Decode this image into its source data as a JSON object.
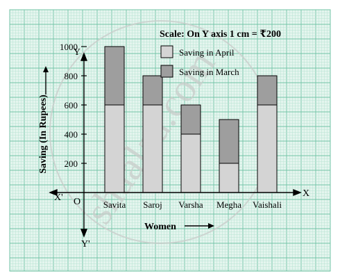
{
  "chart_data": {
    "type": "bar",
    "stacked": true,
    "title": "",
    "scale_note": "Scale: On Y axis 1 cm =  ₹200",
    "xlabel": "Women",
    "ylabel": "Saving (In Rupees)",
    "axis_labels": {
      "y_top": "Y",
      "y_bottom": "Y'",
      "x_right": "X",
      "x_left": "X'",
      "origin": "O"
    },
    "categories": [
      "Savita",
      "Saroj",
      "Varsha",
      "Megha",
      "Vaishali"
    ],
    "series": [
      {
        "name": "Saving in April",
        "values": [
          600,
          600,
          400,
          200,
          600
        ],
        "color": "#d4d4d4"
      },
      {
        "name": "Saving in March",
        "values": [
          400,
          200,
          200,
          300,
          200
        ],
        "color": "#9e9e9e"
      }
    ],
    "yticks": [
      200,
      400,
      600,
      800,
      1000
    ],
    "ylim": [
      0,
      1200
    ],
    "grid": true,
    "legend_position": "top-right",
    "watermark": "shaalaa.com",
    "colors": {
      "grid_minor": "#b8e3d3",
      "grid_major": "#72c4a6",
      "background": "#e4f5ee"
    }
  }
}
